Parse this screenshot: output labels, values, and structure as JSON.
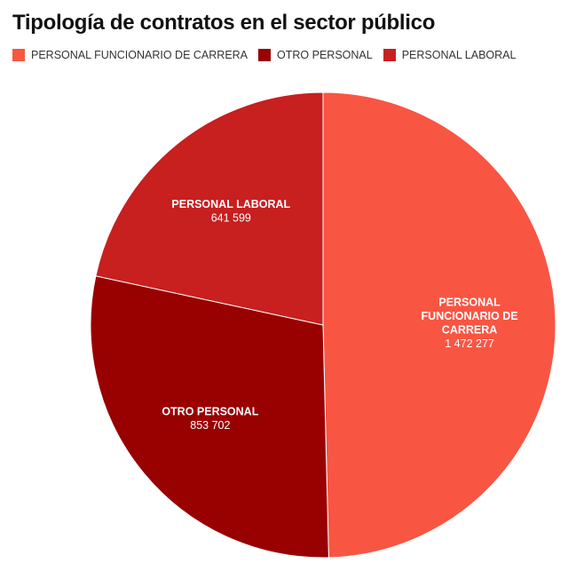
{
  "chart_data": {
    "type": "pie",
    "title": "Tipología de contratos en el sector público",
    "legend_position": "top-left",
    "slices": [
      {
        "name": "PERSONAL FUNCIONARIO DE CARRERA",
        "label_lines": [
          "PERSONAL",
          "FUNCIONARIO DE",
          "CARRERA"
        ],
        "value": 1472277,
        "value_label": "1 472 277",
        "color": "#f95543"
      },
      {
        "name": "OTRO PERSONAL",
        "label_lines": [
          "OTRO PERSONAL"
        ],
        "value": 853702,
        "value_label": "853 702",
        "color": "#990000"
      },
      {
        "name": "PERSONAL LABORAL",
        "label_lines": [
          "PERSONAL LABORAL"
        ],
        "value": 641599,
        "value_label": "641 599",
        "color": "#c81f1f"
      }
    ]
  }
}
